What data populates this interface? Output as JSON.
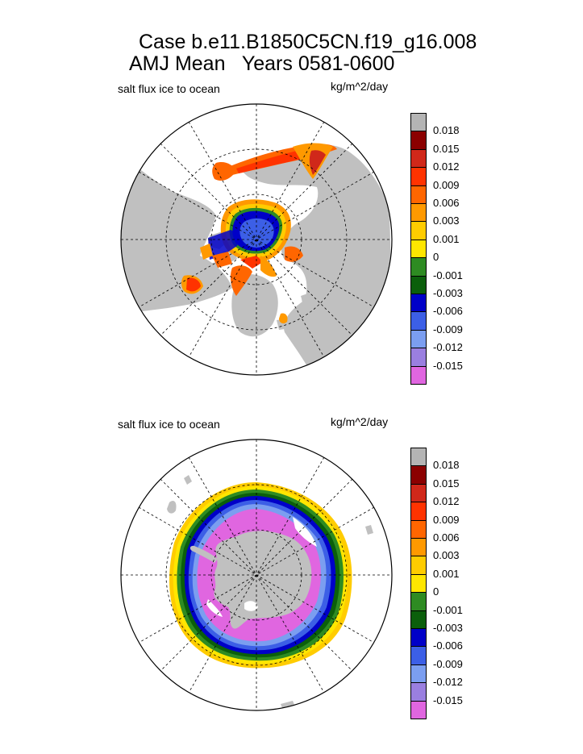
{
  "title": {
    "line1": "Case b.e11.B1850C5CN.f19_g16.008",
    "line2": "AMJ Mean   Years 0581-0600"
  },
  "panels": [
    {
      "id": "north",
      "left_label": "salt flux ice to ocean",
      "right_label": "kg/m^2/day",
      "hemisphere": "Northern"
    },
    {
      "id": "south",
      "left_label": "salt flux ice to ocean",
      "right_label": "kg/m^2/day",
      "hemisphere": "Southern"
    }
  ],
  "colorbar": {
    "colors": [
      "#b4b4b4",
      "#8b0000",
      "#d0281a",
      "#ff3300",
      "#ff6600",
      "#ff9900",
      "#ffcc00",
      "#ffe600",
      "#2e8b22",
      "#0b5f0b",
      "#0000c8",
      "#3c5fe6",
      "#7b9ef0",
      "#9a7fe0",
      "#e066e0"
    ],
    "labels": [
      "0.018",
      "0.015",
      "0.012",
      "0.009",
      "0.006",
      "0.003",
      "0.001",
      "0",
      "-0.001",
      "-0.003",
      "-0.006",
      "-0.009",
      "-0.012",
      "-0.015"
    ]
  },
  "colors": {
    "land": "#c0c0c0",
    "missing": "#ffffff",
    "grid": "#000000"
  }
}
